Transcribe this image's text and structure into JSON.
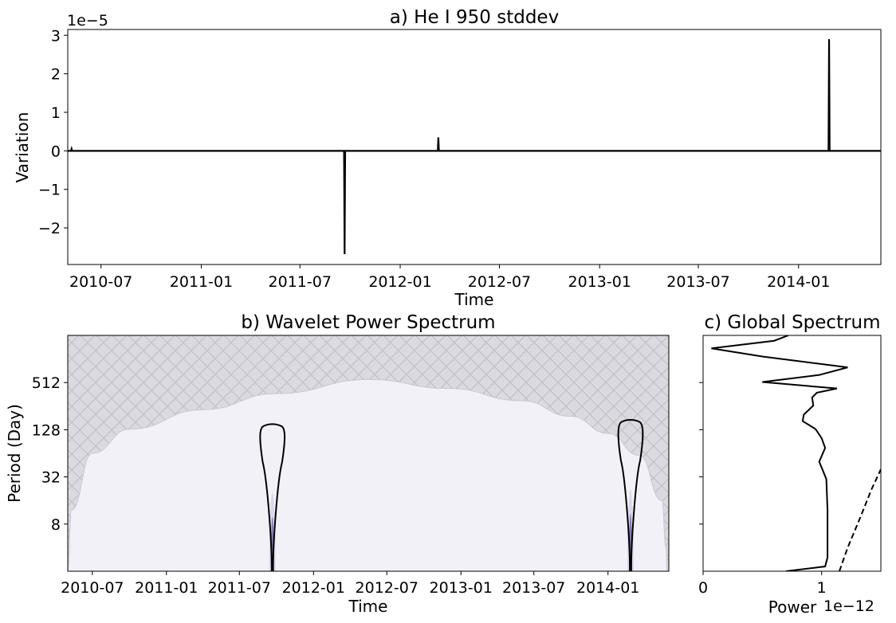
{
  "chart_data": [
    {
      "type": "line",
      "title": "a) He I 950 stddev",
      "xlabel": "Time",
      "ylabel": "Variation",
      "y_offset_label": "1e−5",
      "xlim": [
        "2010-05-01",
        "2014-06-01"
      ],
      "ylim": [
        -2.95,
        3.15
      ],
      "x_ticks": [
        "2010-07",
        "2011-01",
        "2011-07",
        "2012-01",
        "2012-07",
        "2013-01",
        "2013-07",
        "2014-01"
      ],
      "y_ticks": [
        -2,
        -1,
        0,
        1,
        2,
        3
      ],
      "y_tick_labels": [
        "−2",
        "−1",
        "0",
        "1",
        "2",
        "3"
      ],
      "series": [
        {
          "x": [
            "2010-05-01",
            "2010-05-07",
            "2010-05-08",
            "2010-05-09",
            "2011-09-20",
            "2011-09-21",
            "2011-09-22",
            "2012-03-10",
            "2012-03-11",
            "2012-03-12",
            "2014-02-25",
            "2014-02-26",
            "2014-02-27",
            "2014-06-01"
          ],
          "y": [
            0.0,
            0.0,
            0.05,
            0.0,
            0.0,
            -2.68,
            0.0,
            0.0,
            0.35,
            0.0,
            0.0,
            2.9,
            0.0,
            0.0
          ]
        }
      ],
      "color": "#000000",
      "grid": false
    },
    {
      "type": "heatmap",
      "title": "b) Wavelet Power Spectrum",
      "xlabel": "Time",
      "ylabel": "Period (Day)",
      "xlim": [
        "2010-05-01",
        "2014-06-01"
      ],
      "y_scale": "log2",
      "ylim": [
        2,
        2048
      ],
      "x_ticks": [
        "2010-07",
        "2011-01",
        "2011-07",
        "2012-01",
        "2012-07",
        "2013-01",
        "2013-07",
        "2014-01"
      ],
      "y_ticks": [
        8,
        32,
        128,
        512
      ],
      "cone_of_influence": [
        [
          "2010-05-01",
          2
        ],
        [
          "2010-05-10",
          12
        ],
        [
          "2010-07-01",
          64
        ],
        [
          "2010-10-01",
          130
        ],
        [
          "2011-04-01",
          230
        ],
        [
          "2011-10-01",
          370
        ],
        [
          "2012-05-18",
          560
        ],
        [
          "2012-12-01",
          430
        ],
        [
          "2013-06-01",
          300
        ],
        [
          "2013-10-01",
          190
        ],
        [
          "2014-01-01",
          115
        ],
        [
          "2014-03-20",
          60
        ],
        [
          "2014-05-15",
          16
        ],
        [
          "2014-05-25",
          4
        ],
        [
          "2014-05-28",
          2
        ]
      ],
      "significance_contours": [
        {
          "center": "2011-09-21",
          "period_min": 2,
          "period_max": 150
        },
        {
          "center": "2014-02-26",
          "period_min": 2,
          "period_max": 170
        }
      ],
      "power_peaks": [
        {
          "time": "2011-09-21",
          "period_max": 20
        },
        {
          "time": "2014-02-26",
          "period_max": 22
        }
      ],
      "colors": {
        "background": "#f3f1f8",
        "coi_hatch": "#dadae0",
        "peak": "#3c2890",
        "contour": "#000000"
      }
    },
    {
      "type": "line",
      "title": "c) Global Spectrum",
      "xlabel": "Power",
      "x_offset_label": "1e−12",
      "xlim": [
        0,
        1.5
      ],
      "x_ticks": [
        0,
        1
      ],
      "y_scale": "log2",
      "ylim": [
        2,
        2048
      ],
      "series": [
        {
          "x": [
            0.7,
            1.03,
            1.05,
            1.05,
            1.05,
            1.04,
            0.98,
            1.03,
            1.0,
            0.95,
            0.84,
            0.85,
            0.93,
            0.92,
            0.96,
            1.13,
            0.5,
            0.98,
            1.22,
            0.5,
            0.07,
            0.6,
            0.72
          ],
          "period": [
            2,
            2.3,
            3,
            6,
            12,
            30,
            50,
            75,
            100,
            130,
            165,
            200,
            260,
            330,
            380,
            430,
            520,
            640,
            800,
            1100,
            1400,
            1750,
            2048
          ],
          "style": "solid"
        },
        {
          "x": [
            1.15,
            1.22,
            1.33,
            1.42,
            1.5
          ],
          "period": [
            2,
            4,
            10,
            22,
            40
          ],
          "style": "dashed"
        }
      ],
      "color": "#000000",
      "grid": false
    }
  ]
}
